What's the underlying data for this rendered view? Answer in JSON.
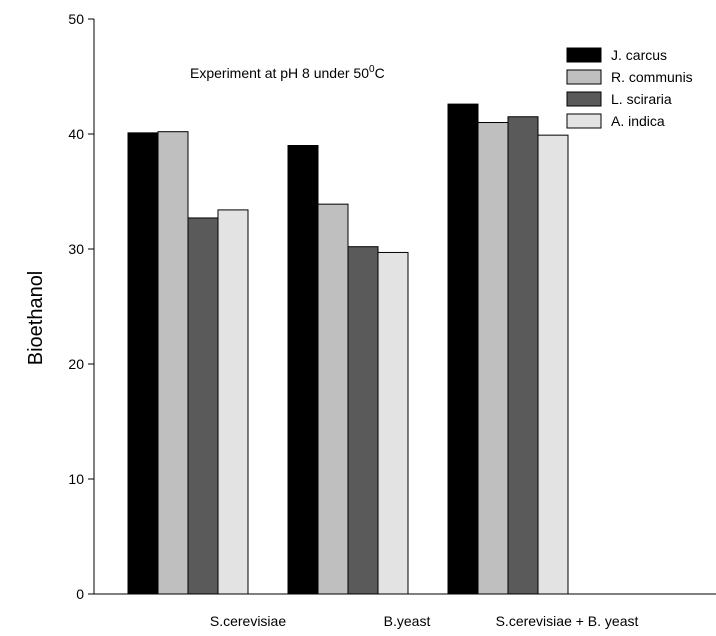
{
  "chart_data": {
    "type": "bar",
    "title": "",
    "annotation": {
      "text": "Experiment at pH 8 under 50",
      "superscript": "0",
      "suffix": "C"
    },
    "xlabel": "",
    "ylabel": "Bioethanol",
    "ylim": [
      0,
      50
    ],
    "yticks": [
      0,
      10,
      20,
      30,
      40,
      50
    ],
    "categories": [
      "S.cerevisiae",
      "B.yeast",
      "S.cerevisiae + B. yeast"
    ],
    "series": [
      {
        "name": "J. carcus",
        "color": "#000000",
        "values": [
          40.1,
          39.0,
          42.6
        ]
      },
      {
        "name": "R. communis",
        "color": "#bfbfbf",
        "values": [
          40.2,
          33.9,
          41.0
        ]
      },
      {
        "name": "L. sciraria",
        "color": "#5a5a5a",
        "values": [
          32.7,
          30.2,
          41.5
        ]
      },
      {
        "name": "A. indica",
        "color": "#e3e3e3",
        "values": [
          33.4,
          29.7,
          39.9
        ]
      }
    ],
    "legend_position": "top-right",
    "grid": false
  }
}
